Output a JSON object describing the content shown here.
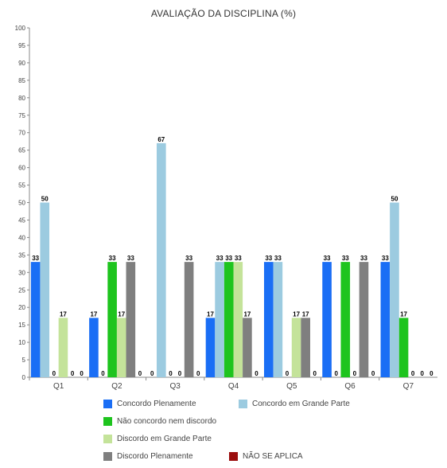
{
  "chart_data": {
    "type": "bar",
    "title": "AVALIAÇÃO DA DISCIPLINA (%)",
    "xlabel": "",
    "ylabel": "",
    "ylim": [
      0,
      100
    ],
    "yticks": [
      0,
      5,
      10,
      15,
      20,
      25,
      30,
      35,
      40,
      45,
      50,
      55,
      60,
      65,
      70,
      75,
      80,
      85,
      90,
      95,
      100
    ],
    "grid": false,
    "legend_position": "bottom",
    "categories": [
      "Q1",
      "Q2",
      "Q3",
      "Q4",
      "Q5",
      "Q6",
      "Q7"
    ],
    "series": [
      {
        "name": "Concordo Plenamente",
        "color": "#1a6ef5",
        "values": [
          33,
          17,
          0,
          17,
          33,
          33,
          33
        ]
      },
      {
        "name": "Concordo em Grande Parte",
        "color": "#9ccbe0",
        "values": [
          50,
          0,
          67,
          33,
          33,
          0,
          50
        ]
      },
      {
        "name": "Não concordo nem discordo",
        "color": "#1ec41e",
        "values": [
          0,
          33,
          0,
          33,
          0,
          33,
          17
        ]
      },
      {
        "name": "Discordo em Grande Parte",
        "color": "#c4e39a",
        "values": [
          17,
          17,
          0,
          33,
          17,
          0,
          0
        ]
      },
      {
        "name": "Discordo Plenamente",
        "color": "#7f7f7f",
        "values": [
          0,
          33,
          33,
          17,
          17,
          33,
          0
        ]
      },
      {
        "name": "NÃO SE APLICA",
        "color": "#9b0e0e",
        "values": [
          0,
          0,
          0,
          0,
          0,
          0,
          0
        ]
      }
    ]
  }
}
